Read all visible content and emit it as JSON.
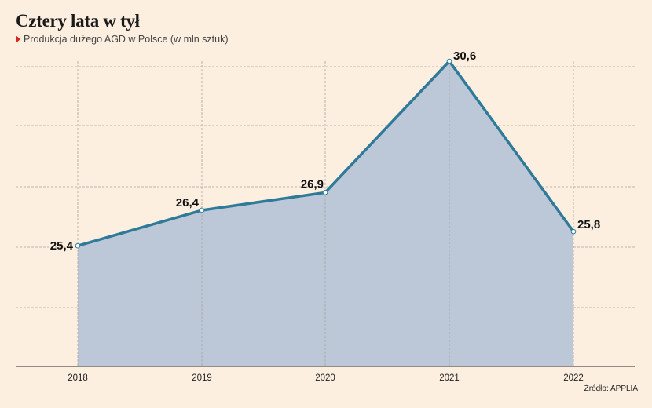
{
  "header": {
    "title": "Cztery lata w tył",
    "subtitle": "Produkcja dużego AGD w Polsce (w mln sztuk)"
  },
  "footer": {
    "source": "Źródło: APPLIA"
  },
  "colors": {
    "background": "#fdefe0",
    "line": "#2f7a99",
    "area": "#bcc8d8",
    "grid": "#a9a49e",
    "marker": "#d9261c"
  },
  "chart_data": {
    "type": "area",
    "categories": [
      "2018",
      "2019",
      "2020",
      "2021",
      "2022"
    ],
    "values": [
      25.4,
      26.4,
      26.9,
      30.6,
      25.8
    ],
    "value_labels": [
      "25,4",
      "26,4",
      "26,9",
      "30,6",
      "25,8"
    ],
    "title": "Cztery lata w tył",
    "subtitle": "Produkcja dużego AGD w Polsce (w mln sztuk)",
    "xlabel": "",
    "ylabel": "",
    "ylim": [
      22,
      30.6
    ],
    "grid": true,
    "legend": "none"
  }
}
